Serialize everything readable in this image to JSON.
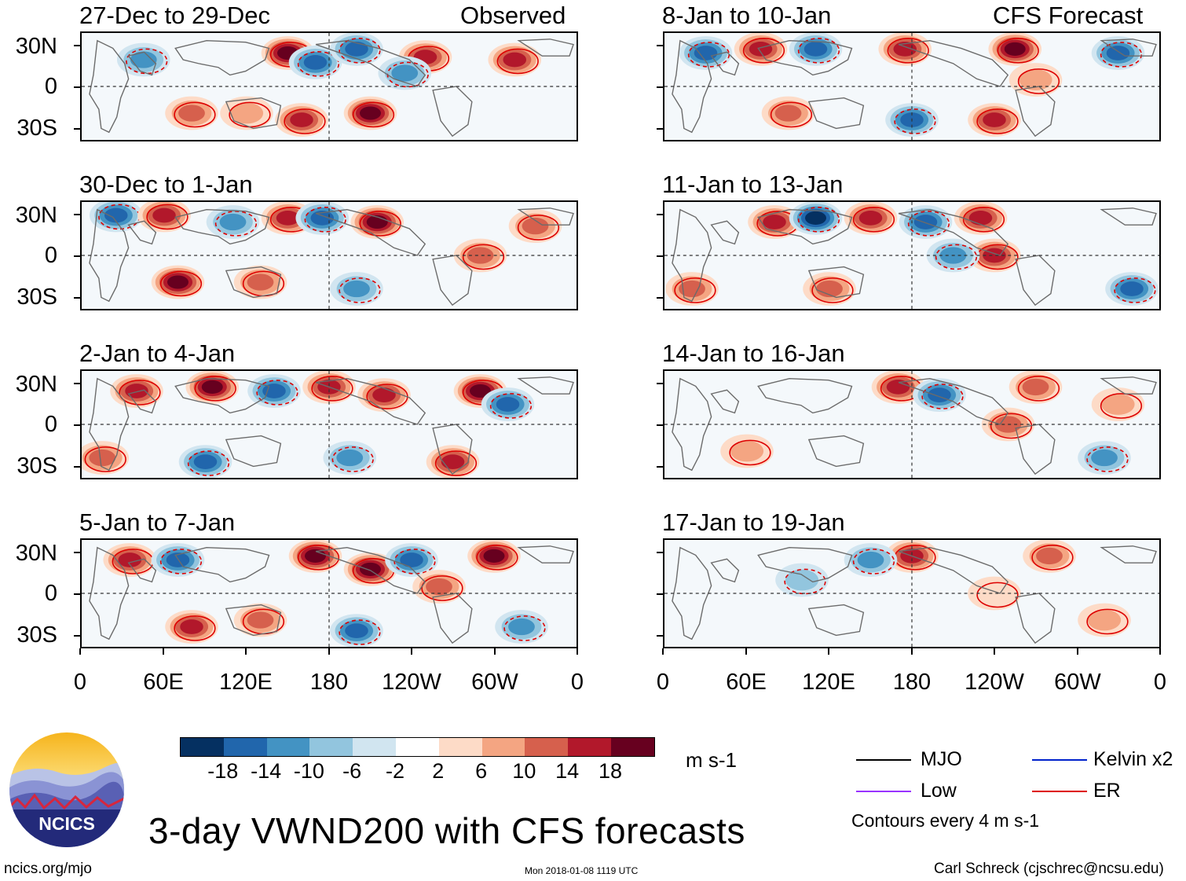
{
  "header": {
    "observed_label": "Observed",
    "forecast_label": "CFS Forecast"
  },
  "panels_left": [
    {
      "title": "27-Dec to 29-Dec"
    },
    {
      "title": "30-Dec to 1-Jan"
    },
    {
      "title": "2-Jan to 4-Jan"
    },
    {
      "title": "5-Jan to 7-Jan"
    }
  ],
  "panels_right": [
    {
      "title": "8-Jan to 10-Jan"
    },
    {
      "title": "11-Jan to 13-Jan"
    },
    {
      "title": "14-Jan to 16-Jan"
    },
    {
      "title": "17-Jan to 19-Jan"
    }
  ],
  "axes": {
    "y_labels": [
      "30N",
      "0",
      "30S"
    ],
    "x_labels": [
      "0",
      "60E",
      "120E",
      "180",
      "120W",
      "60W",
      "0"
    ]
  },
  "colorbar": {
    "labels": [
      "-18",
      "-14",
      "-10",
      "-6",
      "-2",
      "2",
      "6",
      "10",
      "14",
      "18"
    ],
    "colors": [
      "#053061",
      "#2166ac",
      "#4393c3",
      "#92c5de",
      "#d1e5f0",
      "#ffffff",
      "#fddbc7",
      "#f4a582",
      "#d6604d",
      "#b2182b",
      "#67001f"
    ],
    "units": "m s-1"
  },
  "legend": {
    "items": [
      {
        "label": "MJO",
        "color": "#000000"
      },
      {
        "label": "Kelvin x2",
        "color": "#0022cc"
      },
      {
        "label": "Low",
        "color": "#9933ff"
      },
      {
        "label": "ER",
        "color": "#dd0000"
      }
    ],
    "contours_note": "Contours every 4 m s-1"
  },
  "title": "3-day VWND200 with CFS forecasts",
  "footer": {
    "left": "ncics.org/mjo",
    "center": "Mon 2018-01-08 1119 UTC",
    "right": "Carl Schreck (cjschrec@ncsu.edu)"
  },
  "logo": {
    "text": "NCICS"
  },
  "chart_data": {
    "type": "heatmap",
    "variable": "200-hPa meridional wind anomaly",
    "units": "m s-1",
    "x_range": [
      0,
      360
    ],
    "y_range": [
      -40,
      40
    ],
    "color_levels": [
      -18,
      -14,
      -10,
      -6,
      -2,
      2,
      6,
      10,
      14,
      18
    ],
    "panels": [
      {
        "period": "27-Dec to 29-Dec",
        "source": "Observed",
        "features": [
          {
            "lon": 150,
            "lat": 25,
            "v": 20
          },
          {
            "lon": 170,
            "lat": 18,
            "v": -16
          },
          {
            "lon": 250,
            "lat": 22,
            "v": 14
          },
          {
            "lon": 210,
            "lat": -20,
            "v": 18
          },
          {
            "lon": 160,
            "lat": -25,
            "v": 16
          },
          {
            "lon": 45,
            "lat": 20,
            "v": -12
          },
          {
            "lon": 80,
            "lat": -20,
            "v": 10
          },
          {
            "lon": 120,
            "lat": -20,
            "v": 8
          },
          {
            "lon": 235,
            "lat": 10,
            "v": -10
          },
          {
            "lon": 315,
            "lat": 20,
            "v": 16
          },
          {
            "lon": 200,
            "lat": 28,
            "v": -14
          }
        ]
      },
      {
        "period": "30-Dec to 1-Jan",
        "source": "Observed",
        "features": [
          {
            "lon": 25,
            "lat": 30,
            "v": -16
          },
          {
            "lon": 60,
            "lat": 30,
            "v": 14
          },
          {
            "lon": 110,
            "lat": 25,
            "v": -12
          },
          {
            "lon": 150,
            "lat": 28,
            "v": 16
          },
          {
            "lon": 175,
            "lat": 28,
            "v": -16
          },
          {
            "lon": 215,
            "lat": 25,
            "v": 18
          },
          {
            "lon": 70,
            "lat": -20,
            "v": 18
          },
          {
            "lon": 130,
            "lat": -20,
            "v": 10
          },
          {
            "lon": 330,
            "lat": 22,
            "v": 12
          },
          {
            "lon": 290,
            "lat": 0,
            "v": 10
          },
          {
            "lon": 200,
            "lat": -25,
            "v": -12
          }
        ]
      },
      {
        "period": "2-Jan to 4-Jan",
        "source": "Observed",
        "features": [
          {
            "lon": 40,
            "lat": 25,
            "v": 14
          },
          {
            "lon": 95,
            "lat": 28,
            "v": 18
          },
          {
            "lon": 140,
            "lat": 25,
            "v": -16
          },
          {
            "lon": 180,
            "lat": 28,
            "v": 16
          },
          {
            "lon": 220,
            "lat": 22,
            "v": 14
          },
          {
            "lon": 290,
            "lat": 25,
            "v": 18
          },
          {
            "lon": 310,
            "lat": 15,
            "v": -14
          },
          {
            "lon": 270,
            "lat": -28,
            "v": 16
          },
          {
            "lon": 90,
            "lat": -28,
            "v": -14
          },
          {
            "lon": 195,
            "lat": -25,
            "v": -12
          },
          {
            "lon": 15,
            "lat": -25,
            "v": 10
          }
        ]
      },
      {
        "period": "5-Jan to 7-Jan",
        "source": "Observed",
        "features": [
          {
            "lon": 35,
            "lat": 25,
            "v": 16
          },
          {
            "lon": 70,
            "lat": 25,
            "v": -14
          },
          {
            "lon": 170,
            "lat": 28,
            "v": 18
          },
          {
            "lon": 210,
            "lat": 18,
            "v": 20
          },
          {
            "lon": 240,
            "lat": 25,
            "v": -16
          },
          {
            "lon": 300,
            "lat": 28,
            "v": 18
          },
          {
            "lon": 80,
            "lat": -25,
            "v": 16
          },
          {
            "lon": 130,
            "lat": -20,
            "v": 10
          },
          {
            "lon": 200,
            "lat": -28,
            "v": -14
          },
          {
            "lon": 320,
            "lat": -25,
            "v": -12
          },
          {
            "lon": 260,
            "lat": 5,
            "v": 10
          }
        ]
      },
      {
        "period": "8-Jan to 10-Jan",
        "source": "CFS Forecast",
        "features": [
          {
            "lon": 30,
            "lat": 25,
            "v": -14
          },
          {
            "lon": 70,
            "lat": 28,
            "v": 16
          },
          {
            "lon": 110,
            "lat": 28,
            "v": -16
          },
          {
            "lon": 175,
            "lat": 28,
            "v": 14
          },
          {
            "lon": 255,
            "lat": 28,
            "v": 18
          },
          {
            "lon": 330,
            "lat": 25,
            "v": -14
          },
          {
            "lon": 180,
            "lat": -25,
            "v": -16
          },
          {
            "lon": 240,
            "lat": -25,
            "v": 16
          },
          {
            "lon": 90,
            "lat": -20,
            "v": 10
          },
          {
            "lon": 270,
            "lat": 5,
            "v": 8
          }
        ]
      },
      {
        "period": "11-Jan to 13-Jan",
        "source": "CFS Forecast",
        "features": [
          {
            "lon": 80,
            "lat": 25,
            "v": 16
          },
          {
            "lon": 110,
            "lat": 28,
            "v": -18
          },
          {
            "lon": 150,
            "lat": 28,
            "v": 16
          },
          {
            "lon": 190,
            "lat": 25,
            "v": -14
          },
          {
            "lon": 230,
            "lat": 28,
            "v": 16
          },
          {
            "lon": 240,
            "lat": 0,
            "v": 14
          },
          {
            "lon": 210,
            "lat": 0,
            "v": -10
          },
          {
            "lon": 340,
            "lat": -25,
            "v": -14
          },
          {
            "lon": 120,
            "lat": -25,
            "v": 10
          },
          {
            "lon": 20,
            "lat": -25,
            "v": 10
          }
        ]
      },
      {
        "period": "14-Jan to 16-Jan",
        "source": "CFS Forecast",
        "features": [
          {
            "lon": 170,
            "lat": 28,
            "v": 14
          },
          {
            "lon": 200,
            "lat": 22,
            "v": -14
          },
          {
            "lon": 270,
            "lat": 28,
            "v": 12
          },
          {
            "lon": 250,
            "lat": 0,
            "v": 10
          },
          {
            "lon": 320,
            "lat": -25,
            "v": -10
          },
          {
            "lon": 60,
            "lat": -20,
            "v": 6
          },
          {
            "lon": 330,
            "lat": 15,
            "v": 8
          }
        ]
      },
      {
        "period": "17-Jan to 19-Jan",
        "source": "CFS Forecast",
        "features": [
          {
            "lon": 180,
            "lat": 28,
            "v": 16
          },
          {
            "lon": 150,
            "lat": 25,
            "v": -12
          },
          {
            "lon": 280,
            "lat": 28,
            "v": 10
          },
          {
            "lon": 320,
            "lat": -20,
            "v": 8
          },
          {
            "lon": 240,
            "lat": 0,
            "v": 4
          },
          {
            "lon": 100,
            "lat": 10,
            "v": -6
          }
        ]
      }
    ]
  }
}
